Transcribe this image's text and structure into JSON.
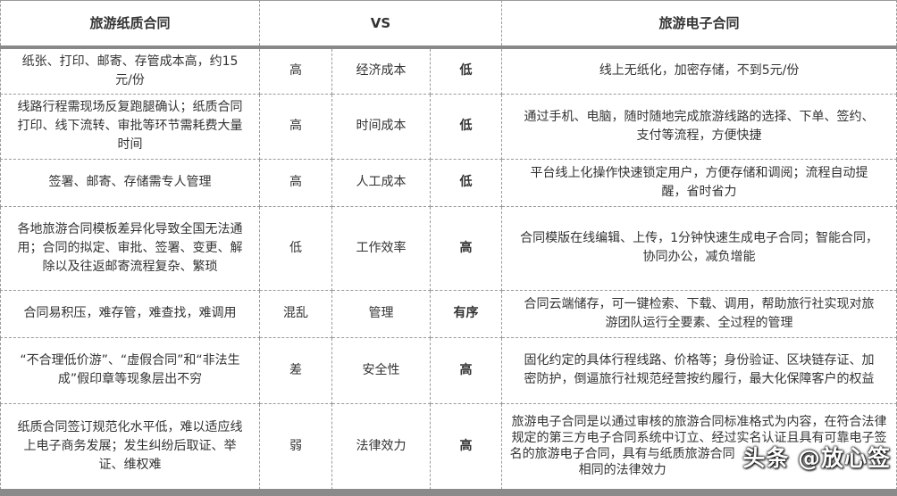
{
  "header": {
    "left": "旅游纸质合同",
    "middle": "VS",
    "right": "旅游电子合同"
  },
  "rows": [
    {
      "paper": "纸张、打印、邮寄、存管成本高，约15元/份",
      "paper_level": "高",
      "aspect": "经济成本",
      "e_level": "低",
      "electronic": "线上无纸化，加密存储，不到5元/份"
    },
    {
      "paper": "线路行程需现场反复跑腿确认；纸质合同打印、线下流转、审批等环节需耗费大量时间",
      "paper_level": "高",
      "aspect": "时间成本",
      "e_level": "低",
      "electronic": "通过手机、电脑，随时随地完成旅游线路的选择、下单、签约、支付等流程，方便快捷"
    },
    {
      "paper": "签署、邮寄、存储需专人管理",
      "paper_level": "高",
      "aspect": "人工成本",
      "e_level": "低",
      "electronic": "平台线上化操作快速锁定用户，方便存储和调阅；流程自动提醒，省时省力"
    },
    {
      "paper": "各地旅游合同模板差异化导致全国无法通用；合同的拟定、审批、签署、变更、解除以及往返邮寄流程复杂、繁琐",
      "paper_level": "低",
      "aspect": "工作效率",
      "e_level": "高",
      "electronic": "合同模版在线编辑、上传，1分钟快速生成电子合同；智能合同，协同办公，减负增能"
    },
    {
      "paper": "合同易积压，难存管，难查找，难调用",
      "paper_level": "混乱",
      "aspect": "管理",
      "e_level": "有序",
      "electronic": "合同云端储存，可一键检索、下载、调用，帮助旅行社实现对旅游团队运行全要素、全过程的管理"
    },
    {
      "paper": "“不合理低价游”、“虚假合同”和“非法生成”假印章等现象层出不穷",
      "paper_level": "差",
      "aspect": "安全性",
      "e_level": "高",
      "electronic": "固化约定的具体行程线路、价格等；身份验证、区块链存证、加密防护，倒逼旅行社规范经营按约履行，最大化保障客户的权益"
    },
    {
      "paper": "纸质合同签订规范化水平低，难以适应线上电子商务发展；发生纠纷后取证、举证、维权难",
      "paper_level": "弱",
      "aspect": "法律效力",
      "e_level": "高",
      "electronic": "旅游电子合同是以通过审核的旅游合同标准格式为内容，在符合法律规定的第三方电子合同系统中订立、经过实名认证且具有可靠电子签名的旅游电子合同，具有与纸质旅游合同相同的法律效力"
    }
  ],
  "watermark": "头条 @放心签"
}
